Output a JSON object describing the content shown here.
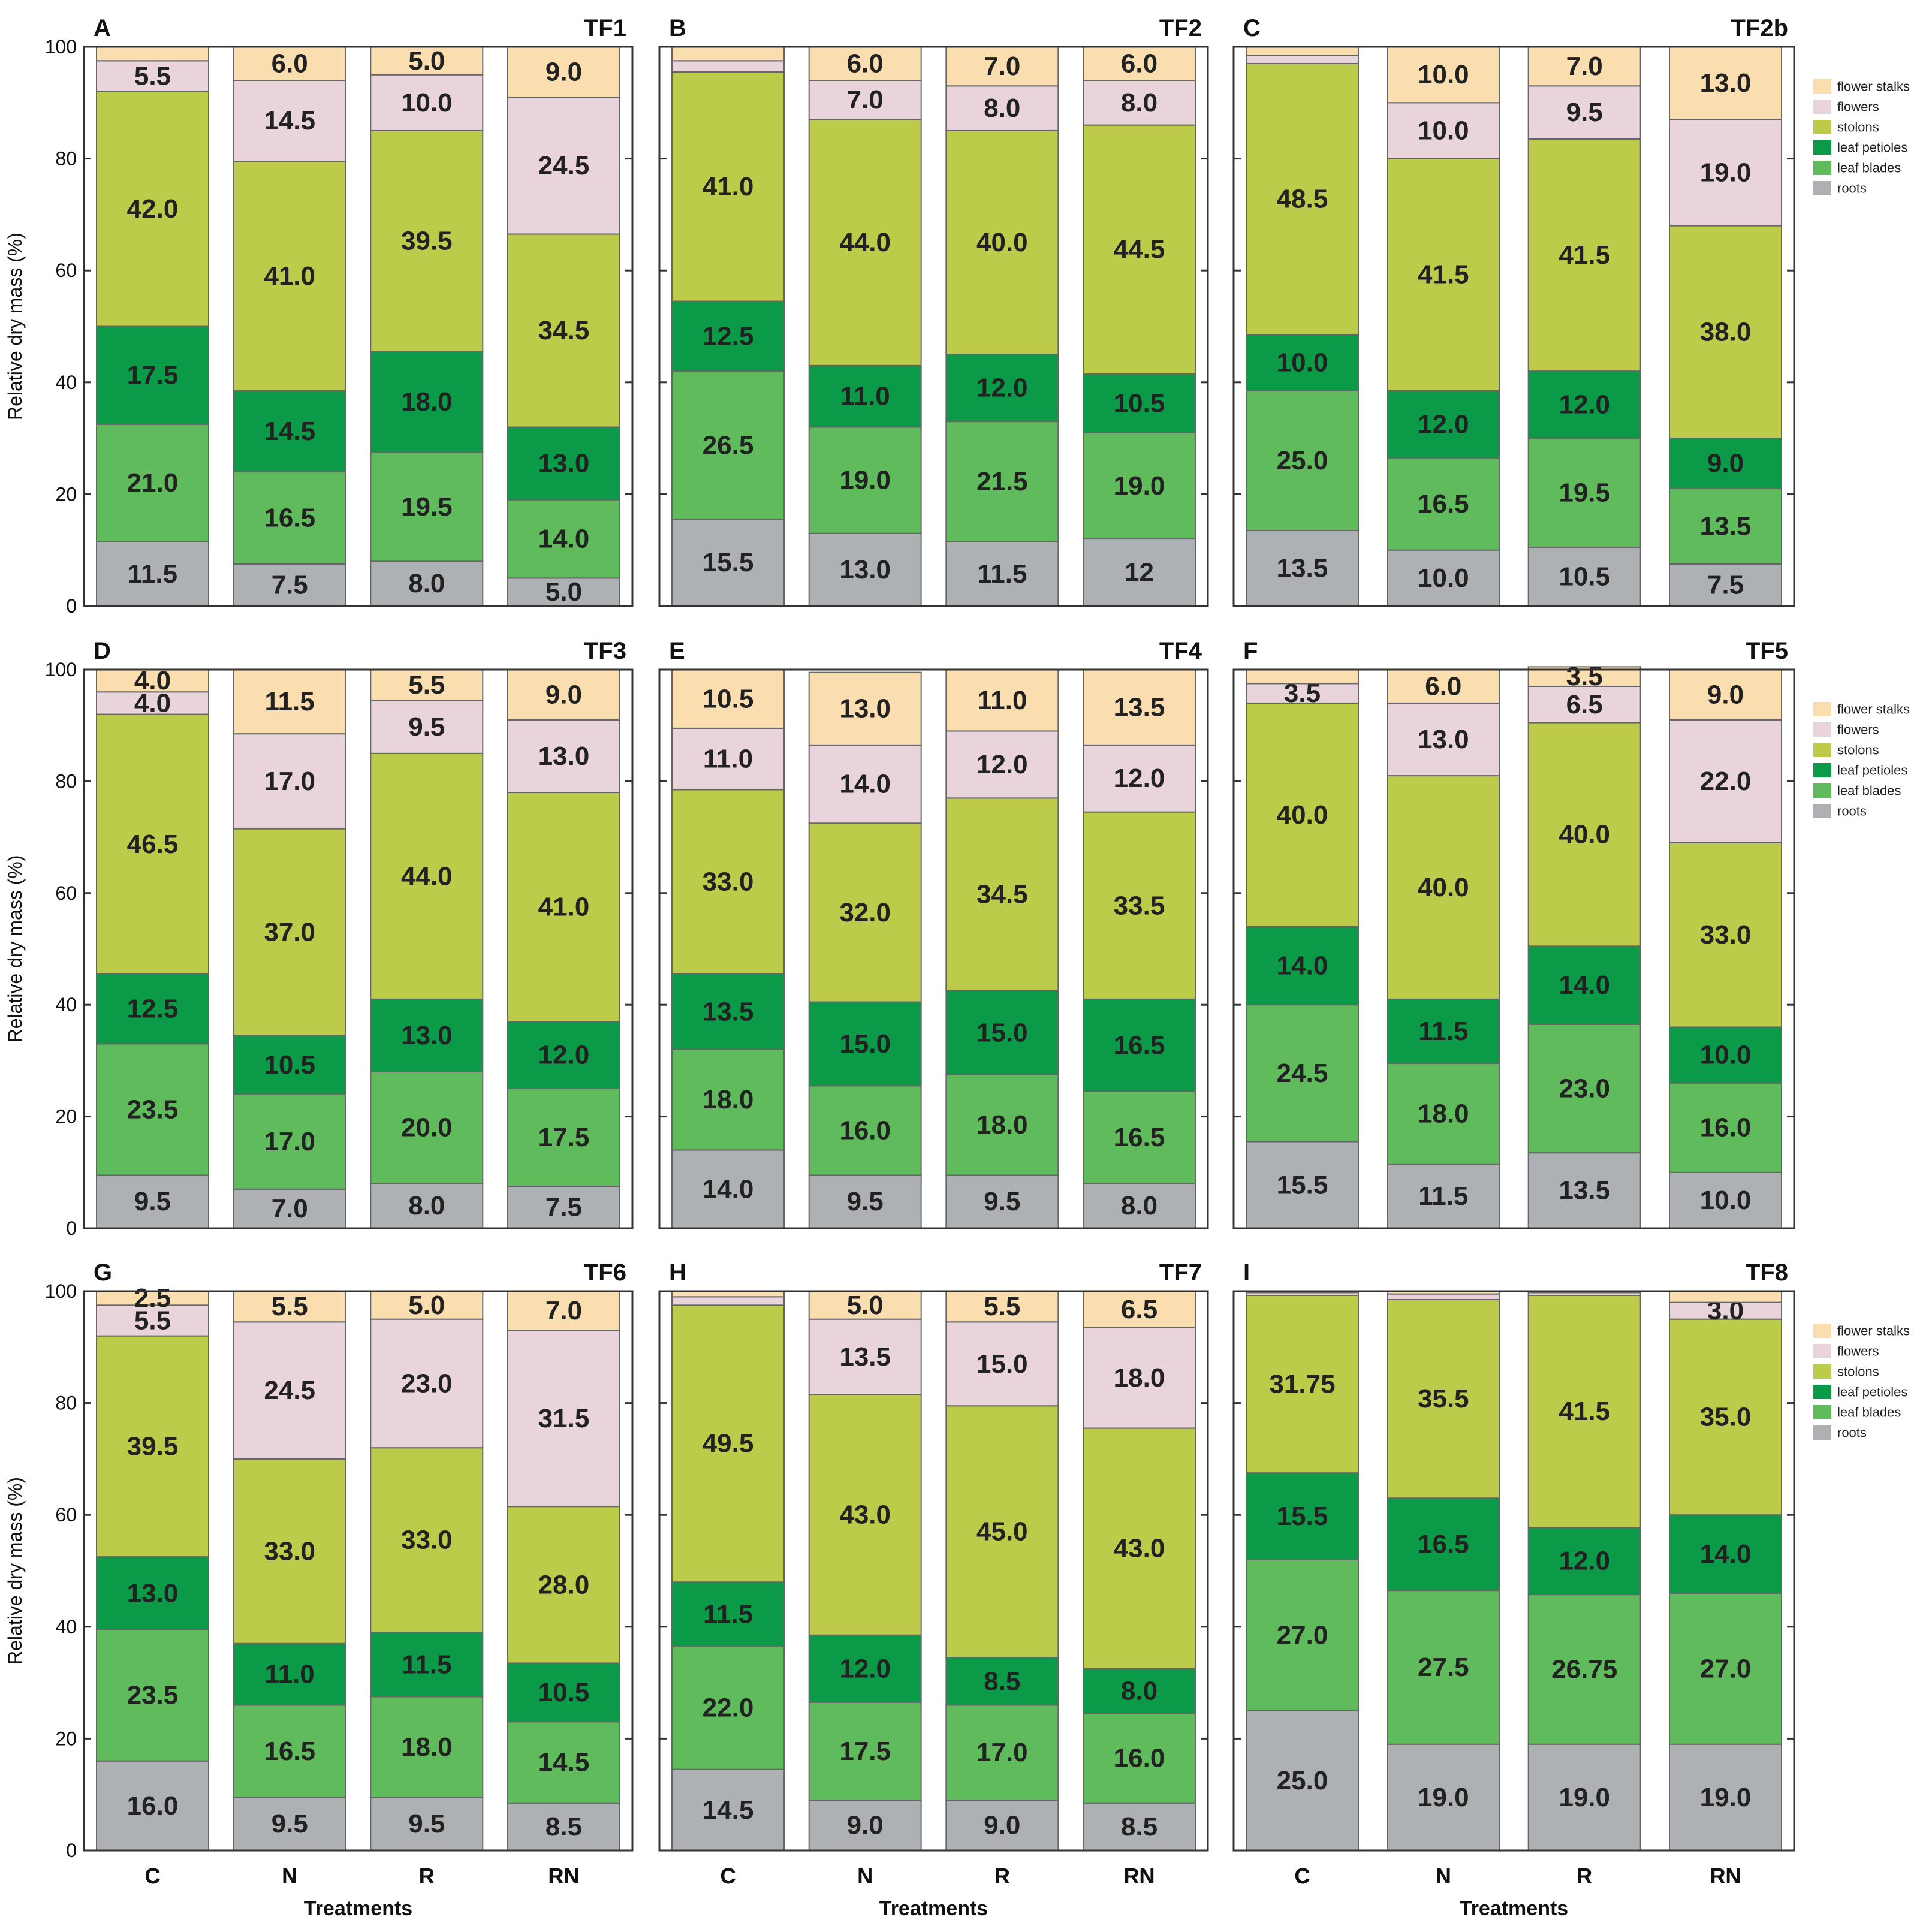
{
  "colors": {
    "roots": "#adb1b4",
    "leaf_blades": "#5fbb5b",
    "leaf_petioles": "#0a9a48",
    "stolons": "#bccb4a",
    "flowers": "#ead4dc",
    "flower_stalks": "#fbdeaf"
  },
  "chart_data": {
    "type": "stacked-bar",
    "ylabel": "Relative dry mass (%)",
    "xlabel": "Treatments",
    "ylim": [
      0,
      100
    ],
    "yticks": [
      "0",
      "20",
      "40",
      "60",
      "80",
      "100"
    ],
    "categories": [
      "C",
      "N",
      "R",
      "RN"
    ],
    "legend": [
      "flower stalks",
      "flowers",
      "stolons",
      "leaf petioles",
      "leaf blades",
      "roots"
    ],
    "stack_order": [
      "roots",
      "leaf blades",
      "leaf petioles",
      "stolons",
      "flowers",
      "flower stalks"
    ],
    "panels": [
      {
        "letter": "A",
        "title": "TF1",
        "bars": [
          {
            "category": "C",
            "values": [
              11.5,
              21.0,
              17.5,
              42.0,
              5.5,
              2.5
            ],
            "labels": [
              "11.5",
              "21.0",
              "17.5",
              "42.0",
              "5.5",
              ""
            ]
          },
          {
            "category": "N",
            "values": [
              7.5,
              16.5,
              14.5,
              41.0,
              14.5,
              6.0
            ],
            "labels": [
              "7.5",
              "16.5",
              "14.5",
              "41.0",
              "14.5",
              "6.0"
            ]
          },
          {
            "category": "R",
            "values": [
              8.0,
              19.5,
              18.0,
              39.5,
              10.0,
              5.0
            ],
            "labels": [
              "8.0",
              "19.5",
              "18.0",
              "39.5",
              "10.0",
              "5.0"
            ]
          },
          {
            "category": "RN",
            "values": [
              5.0,
              14.0,
              13.0,
              34.5,
              24.5,
              9.0
            ],
            "labels": [
              "5.0",
              "14.0",
              "13.0",
              "34.5",
              "24.5",
              "9.0"
            ]
          }
        ]
      },
      {
        "letter": "B",
        "title": "TF2",
        "bars": [
          {
            "category": "C",
            "values": [
              15.5,
              26.5,
              12.5,
              41.0,
              2.0,
              2.5
            ],
            "labels": [
              "15.5",
              "26.5",
              "12.5",
              "41.0",
              "",
              ""
            ]
          },
          {
            "category": "N",
            "values": [
              13.0,
              19.0,
              11.0,
              44.0,
              7.0,
              6.0
            ],
            "labels": [
              "13.0",
              "19.0",
              "11.0",
              "44.0",
              "7.0",
              "6.0"
            ]
          },
          {
            "category": "R",
            "values": [
              11.5,
              21.5,
              12.0,
              40.0,
              8.0,
              7.0
            ],
            "labels": [
              "11.5",
              "21.5",
              "12.0",
              "40.0",
              "8.0",
              "7.0"
            ]
          },
          {
            "category": "RN",
            "values": [
              12,
              19.0,
              10.5,
              44.5,
              8.0,
              6.0
            ],
            "labels": [
              "12",
              "19.0",
              "10.5",
              "44.5",
              "8.0",
              "6.0"
            ]
          }
        ]
      },
      {
        "letter": "C",
        "title": "TF2b",
        "bars": [
          {
            "category": "C",
            "values": [
              13.5,
              25.0,
              10.0,
              48.5,
              1.5,
              1.5
            ],
            "labels": [
              "13.5",
              "25.0",
              "10.0",
              "48.5",
              "",
              ""
            ]
          },
          {
            "category": "N",
            "values": [
              10.0,
              16.5,
              12.0,
              41.5,
              10.0,
              10.0
            ],
            "labels": [
              "10.0",
              "16.5",
              "12.0",
              "41.5",
              "10.0",
              "10.0"
            ]
          },
          {
            "category": "R",
            "values": [
              10.5,
              19.5,
              12.0,
              41.5,
              9.5,
              7.0
            ],
            "labels": [
              "10.5",
              "19.5",
              "12.0",
              "41.5",
              "9.5",
              "7.0"
            ]
          },
          {
            "category": "RN",
            "values": [
              7.5,
              13.5,
              9.0,
              38.0,
              19.0,
              13.0
            ],
            "labels": [
              "7.5",
              "13.5",
              "9.0",
              "38.0",
              "19.0",
              "13.0"
            ]
          }
        ]
      },
      {
        "letter": "D",
        "title": "TF3",
        "bars": [
          {
            "category": "C",
            "values": [
              9.5,
              23.5,
              12.5,
              46.5,
              4.0,
              4.0
            ],
            "labels": [
              "9.5",
              "23.5",
              "12.5",
              "46.5",
              "4.0",
              "4.0"
            ]
          },
          {
            "category": "N",
            "values": [
              7.0,
              17.0,
              10.5,
              37.0,
              17.0,
              11.5
            ],
            "labels": [
              "7.0",
              "17.0",
              "10.5",
              "37.0",
              "17.0",
              "11.5"
            ]
          },
          {
            "category": "R",
            "values": [
              8.0,
              20.0,
              13.0,
              44.0,
              9.5,
              5.5
            ],
            "labels": [
              "8.0",
              "20.0",
              "13.0",
              "44.0",
              "9.5",
              "5.5"
            ]
          },
          {
            "category": "RN",
            "values": [
              7.5,
              17.5,
              12.0,
              41.0,
              13.0,
              9.0
            ],
            "labels": [
              "7.5",
              "17.5",
              "12.0",
              "41.0",
              "13.0",
              "9.0"
            ]
          }
        ]
      },
      {
        "letter": "E",
        "title": "TF4",
        "bars": [
          {
            "category": "C",
            "values": [
              14.0,
              18.0,
              13.5,
              33.0,
              11.0,
              10.5
            ],
            "labels": [
              "14.0",
              "18.0",
              "13.5",
              "33.0",
              "11.0",
              "10.5"
            ]
          },
          {
            "category": "N",
            "values": [
              9.5,
              16.0,
              15.0,
              32.0,
              14.0,
              13.0
            ],
            "labels": [
              "9.5",
              "16.0",
              "15.0",
              "32.0",
              "14.0",
              "13.0"
            ]
          },
          {
            "category": "R",
            "values": [
              9.5,
              18.0,
              15.0,
              34.5,
              12.0,
              11.0
            ],
            "labels": [
              "9.5",
              "18.0",
              "15.0",
              "34.5",
              "12.0",
              "11.0"
            ]
          },
          {
            "category": "RN",
            "values": [
              8.0,
              16.5,
              16.5,
              33.5,
              12.0,
              13.5
            ],
            "labels": [
              "8.0",
              "16.5",
              "16.5",
              "33.5",
              "12.0",
              "13.5"
            ]
          }
        ]
      },
      {
        "letter": "F",
        "title": "TF5",
        "bars": [
          {
            "category": "C",
            "values": [
              15.5,
              24.5,
              14.0,
              40.0,
              3.5,
              2.5
            ],
            "labels": [
              "15.5",
              "24.5",
              "14.0",
              "40.0",
              "3.5",
              ""
            ]
          },
          {
            "category": "N",
            "values": [
              11.5,
              18.0,
              11.5,
              40.0,
              13.0,
              6.0
            ],
            "labels": [
              "11.5",
              "18.0",
              "11.5",
              "40.0",
              "13.0",
              "6.0"
            ]
          },
          {
            "category": "R",
            "values": [
              13.5,
              23.0,
              14.0,
              40.0,
              6.5,
              3.5
            ],
            "labels": [
              "13.5",
              "23.0",
              "14.0",
              "40.0",
              "6.5",
              "3.5"
            ]
          },
          {
            "category": "RN",
            "values": [
              10.0,
              16.0,
              10.0,
              33.0,
              22.0,
              9.0
            ],
            "labels": [
              "10.0",
              "16.0",
              "10.0",
              "33.0",
              "22.0",
              "9.0"
            ]
          }
        ]
      },
      {
        "letter": "G",
        "title": "TF6",
        "bars": [
          {
            "category": "C",
            "values": [
              16.0,
              23.5,
              13.0,
              39.5,
              5.5,
              2.5
            ],
            "labels": [
              "16.0",
              "23.5",
              "13.0",
              "39.5",
              "5.5",
              "2.5"
            ]
          },
          {
            "category": "N",
            "values": [
              9.5,
              16.5,
              11.0,
              33.0,
              24.5,
              5.5
            ],
            "labels": [
              "9.5",
              "16.5",
              "11.0",
              "33.0",
              "24.5",
              "5.5"
            ]
          },
          {
            "category": "R",
            "values": [
              9.5,
              18.0,
              11.5,
              33.0,
              23.0,
              5.0
            ],
            "labels": [
              "9.5",
              "18.0",
              "11.5",
              "33.0",
              "23.0",
              "5.0"
            ]
          },
          {
            "category": "RN",
            "values": [
              8.5,
              14.5,
              10.5,
              28.0,
              31.5,
              7.0
            ],
            "labels": [
              "8.5",
              "14.5",
              "10.5",
              "28.0",
              "31.5",
              "7.0"
            ]
          }
        ]
      },
      {
        "letter": "H",
        "title": "TF7",
        "bars": [
          {
            "category": "C",
            "values": [
              14.5,
              22.0,
              11.5,
              49.5,
              1.5,
              1.0
            ],
            "labels": [
              "14.5",
              "22.0",
              "11.5",
              "49.5",
              "",
              ""
            ]
          },
          {
            "category": "N",
            "values": [
              9.0,
              17.5,
              12.0,
              43.0,
              13.5,
              5.0
            ],
            "labels": [
              "9.0",
              "17.5",
              "12.0",
              "43.0",
              "13.5",
              "5.0"
            ]
          },
          {
            "category": "R",
            "values": [
              9.0,
              17.0,
              8.5,
              45.0,
              15.0,
              5.5
            ],
            "labels": [
              "9.0",
              "17.0",
              "8.5",
              "45.0",
              "15.0",
              "5.5"
            ]
          },
          {
            "category": "RN",
            "values": [
              8.5,
              16.0,
              8.0,
              43.0,
              18.0,
              6.5
            ],
            "labels": [
              "8.5",
              "16.0",
              "8.0",
              "43.0",
              "18.0",
              "6.5"
            ]
          }
        ]
      },
      {
        "letter": "I",
        "title": "TF8",
        "bars": [
          {
            "category": "C",
            "values": [
              25.0,
              27.0,
              15.5,
              31.75,
              0.5,
              0.25
            ],
            "labels": [
              "25.0",
              "27.0",
              "15.5",
              "31.75",
              "",
              ""
            ]
          },
          {
            "category": "N",
            "values": [
              19.0,
              27.5,
              16.5,
              35.5,
              1.0,
              0.5
            ],
            "labels": [
              "19.0",
              "27.5",
              "16.5",
              "35.5",
              "",
              ""
            ]
          },
          {
            "category": "R",
            "values": [
              19.0,
              26.75,
              12.0,
              41.5,
              0.5,
              0.25
            ],
            "labels": [
              "19.0",
              "26.75",
              "12.0",
              "41.5",
              "",
              ""
            ]
          },
          {
            "category": "RN",
            "values": [
              19.0,
              27.0,
              14.0,
              35.0,
              3.0,
              2.0
            ],
            "labels": [
              "19.0",
              "27.0",
              "14.0",
              "35.0",
              "3.0",
              ""
            ]
          }
        ]
      }
    ]
  }
}
